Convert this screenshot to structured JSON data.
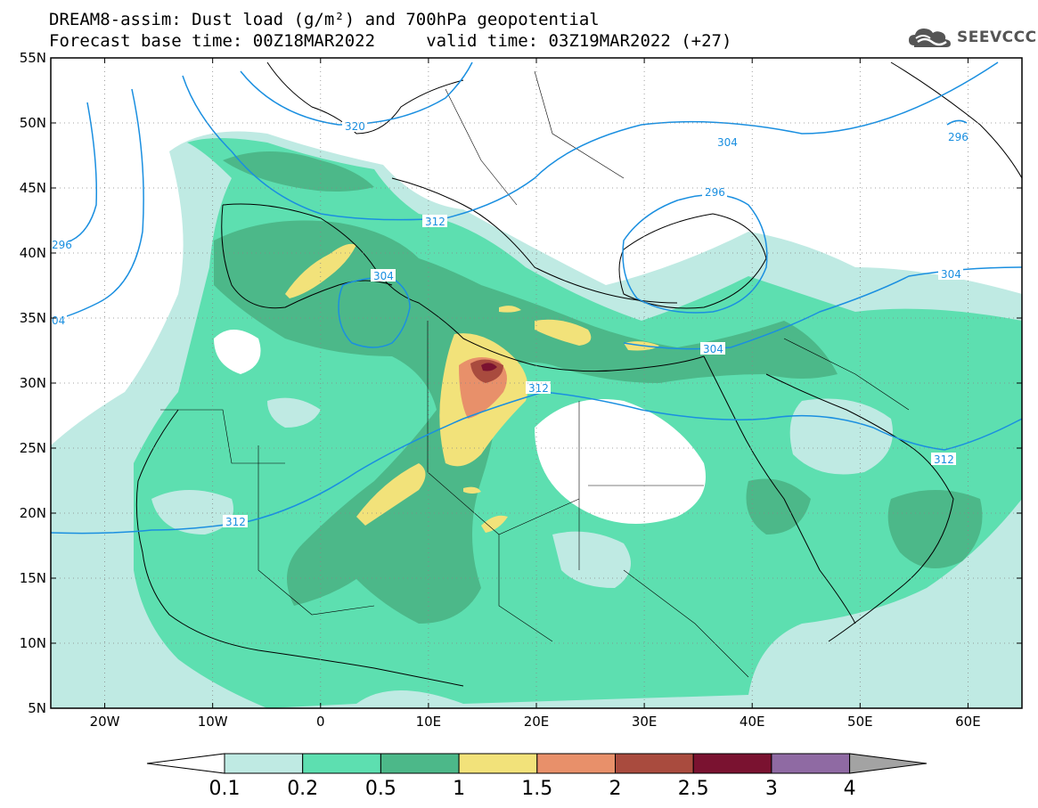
{
  "title": {
    "line1": "DREAM8-assim: Dust load (g/m²) and 700hPa geopotential",
    "line2": "Forecast base time: 00Z18MAR2022     valid time: 03Z19MAR2022 (+27)"
  },
  "logo": {
    "text": "SEEVCCC",
    "icon": "cloud-logo-icon"
  },
  "map": {
    "lat_labels": [
      "55N",
      "50N",
      "45N",
      "40N",
      "35N",
      "30N",
      "25N",
      "20N",
      "15N",
      "10N",
      "5N"
    ],
    "lon_labels": [
      "20W",
      "10W",
      "0",
      "10E",
      "20E",
      "30E",
      "40E",
      "50E",
      "60E"
    ],
    "lat_range": [
      5,
      55
    ],
    "lon_range": [
      -25,
      65
    ],
    "gridlines": true
  },
  "contours": [
    {
      "label": "320"
    },
    {
      "label": "304"
    },
    {
      "label": "296"
    },
    {
      "label": "312"
    },
    {
      "label": "312"
    },
    {
      "label": "304"
    },
    {
      "label": "296"
    },
    {
      "label": "304"
    },
    {
      "label": "304"
    },
    {
      "label": "312"
    },
    {
      "label": "312"
    },
    {
      "label": "296"
    },
    {
      "label": "04"
    }
  ],
  "colorbar": {
    "labels": [
      "0.1",
      "0.2",
      "0.5",
      "1",
      "1.5",
      "2",
      "2.5",
      "3",
      "4"
    ],
    "colors": [
      "#ffffff",
      "#bfeae3",
      "#5ddfb0",
      "#4cb889",
      "#f2e27a",
      "#e8906a",
      "#a94b3e",
      "#7a1230",
      "#8f6aa3",
      "#a3a3a3"
    ]
  }
}
